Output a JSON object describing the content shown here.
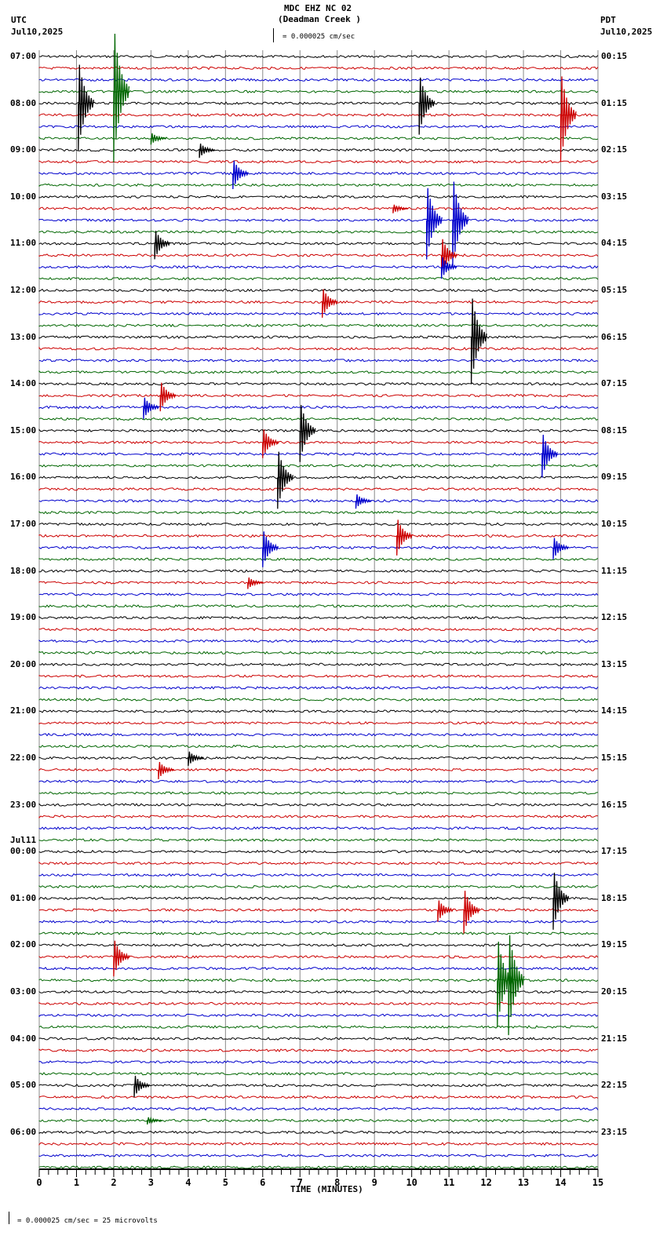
{
  "header": {
    "title": "MDC EHZ NC 02",
    "subtitle": "(Deadman Creek )",
    "scale": "= 0.000025 cm/sec",
    "left_tz": "UTC",
    "left_date": "Jul10,2025",
    "right_tz": "PDT",
    "right_date": "Jul10,2025"
  },
  "footer": {
    "xlabel": "TIME (MINUTES)",
    "scale_note": "= 0.000025 cm/sec =      25 microvolts"
  },
  "colors": {
    "trace": [
      "#000000",
      "#cc0000",
      "#0000cc",
      "#006600"
    ],
    "grid": "#888888"
  },
  "chart_data": {
    "type": "line",
    "title": "MDC EHZ NC 02 (Deadman Creek) helicorder",
    "xlabel": "TIME (MINUTES)",
    "ylabel": "",
    "xlim": [
      0,
      15
    ],
    "x_ticks": [
      0,
      1,
      2,
      3,
      4,
      5,
      6,
      7,
      8,
      9,
      10,
      11,
      12,
      13,
      14,
      15
    ],
    "traces_per_hour": 4,
    "trace_count": 96,
    "left_labels": [
      "07:00",
      "08:00",
      "09:00",
      "10:00",
      "11:00",
      "12:00",
      "13:00",
      "14:00",
      "15:00",
      "16:00",
      "17:00",
      "18:00",
      "19:00",
      "20:00",
      "21:00",
      "22:00",
      "23:00",
      "00:00",
      "01:00",
      "02:00",
      "03:00",
      "04:00",
      "05:00",
      "06:00"
    ],
    "left_date_change": {
      "index": 17,
      "label": "Jul11"
    },
    "right_labels": [
      "00:15",
      "01:15",
      "02:15",
      "03:15",
      "04:15",
      "05:15",
      "06:15",
      "07:15",
      "08:15",
      "09:15",
      "10:15",
      "11:15",
      "12:15",
      "13:15",
      "14:15",
      "15:15",
      "16:15",
      "17:15",
      "18:15",
      "19:15",
      "20:15",
      "21:15",
      "22:15",
      "23:15"
    ],
    "scale": "0.000025 cm/sec = 25 microvolts",
    "events": [
      {
        "trace": 3,
        "minute": 2.0,
        "amp": 90
      },
      {
        "trace": 4,
        "minute": 1.05,
        "amp": 60
      },
      {
        "trace": 4,
        "minute": 10.2,
        "amp": 40
      },
      {
        "trace": 5,
        "minute": 14.0,
        "amp": 60
      },
      {
        "trace": 7,
        "minute": 3.0,
        "amp": 8
      },
      {
        "trace": 8,
        "minute": 4.3,
        "amp": 10
      },
      {
        "trace": 10,
        "minute": 5.2,
        "amp": 20
      },
      {
        "trace": 13,
        "minute": 9.5,
        "amp": 6
      },
      {
        "trace": 14,
        "minute": 10.4,
        "amp": 50
      },
      {
        "trace": 14,
        "minute": 11.1,
        "amp": 60
      },
      {
        "trace": 16,
        "minute": 3.1,
        "amp": 20
      },
      {
        "trace": 17,
        "minute": 10.8,
        "amp": 25
      },
      {
        "trace": 18,
        "minute": 10.8,
        "amp": 15
      },
      {
        "trace": 21,
        "minute": 7.6,
        "amp": 20
      },
      {
        "trace": 24,
        "minute": 11.6,
        "amp": 60
      },
      {
        "trace": 29,
        "minute": 3.25,
        "amp": 20
      },
      {
        "trace": 30,
        "minute": 2.8,
        "amp": 15
      },
      {
        "trace": 32,
        "minute": 7.0,
        "amp": 40
      },
      {
        "trace": 33,
        "minute": 6.0,
        "amp": 20
      },
      {
        "trace": 34,
        "minute": 13.5,
        "amp": 30
      },
      {
        "trace": 36,
        "minute": 6.4,
        "amp": 40
      },
      {
        "trace": 38,
        "minute": 8.5,
        "amp": 10
      },
      {
        "trace": 41,
        "minute": 9.6,
        "amp": 25
      },
      {
        "trace": 42,
        "minute": 6.0,
        "amp": 25
      },
      {
        "trace": 42,
        "minute": 13.8,
        "amp": 15
      },
      {
        "trace": 45,
        "minute": 5.6,
        "amp": 8
      },
      {
        "trace": 60,
        "minute": 4.0,
        "amp": 10
      },
      {
        "trace": 61,
        "minute": 3.2,
        "amp": 12
      },
      {
        "trace": 72,
        "minute": 13.8,
        "amp": 40
      },
      {
        "trace": 73,
        "minute": 11.4,
        "amp": 30
      },
      {
        "trace": 73,
        "minute": 10.7,
        "amp": 15
      },
      {
        "trace": 77,
        "minute": 2.0,
        "amp": 25
      },
      {
        "trace": 79,
        "minute": 12.3,
        "amp": 60
      },
      {
        "trace": 79,
        "minute": 12.6,
        "amp": 70
      },
      {
        "trace": 88,
        "minute": 2.55,
        "amp": 15
      },
      {
        "trace": 91,
        "minute": 2.9,
        "amp": 5
      }
    ]
  }
}
